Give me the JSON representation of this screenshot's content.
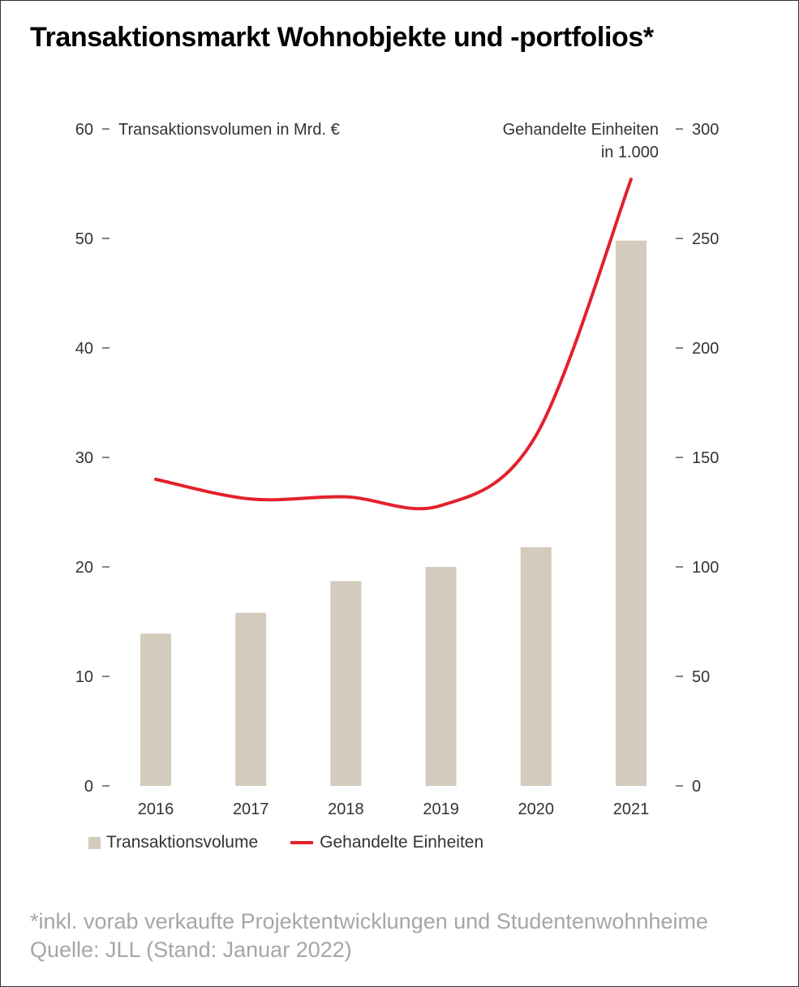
{
  "title": "Transaktionsmarkt Wohnobjekte und -portfolios*",
  "footnote": {
    "line1": "*inkl. vorab verkaufte Projektentwicklungen und Studentenwohnheime",
    "line2": "Quelle: JLL (Stand: Januar 2022)"
  },
  "colors": {
    "bar": "#d3cbbb",
    "line": "#e3212b",
    "footnote": "#a6a6a6"
  },
  "chart_data": {
    "type": "bar",
    "title": "Transaktionsmarkt Wohnobjekte und -portfolios*",
    "categories": [
      "2016",
      "2017",
      "2018",
      "2019",
      "2020",
      "2021"
    ],
    "series": [
      {
        "name": "Transaktionsvolume",
        "type": "bar",
        "axis": "left",
        "values": [
          13.9,
          15.8,
          18.7,
          20.0,
          21.8,
          49.8
        ]
      },
      {
        "name": "Gehandelte Einheiten",
        "type": "line",
        "axis": "right",
        "values": [
          140,
          131,
          132,
          128,
          160,
          277
        ]
      }
    ],
    "y_left": {
      "label": "Transaktionsvolumen in Mrd. €",
      "range": [
        0,
        60
      ],
      "ticks": [
        "0",
        "10",
        "20",
        "30",
        "40",
        "50",
        "60"
      ]
    },
    "y_right": {
      "label_line1": "Gehandelte Einheiten",
      "label_line2": "in 1.000",
      "range": [
        0,
        300
      ],
      "ticks": [
        "0",
        "50",
        "100",
        "150",
        "200",
        "250",
        "300"
      ]
    },
    "grid": false,
    "legend_position": "bottom-left"
  }
}
